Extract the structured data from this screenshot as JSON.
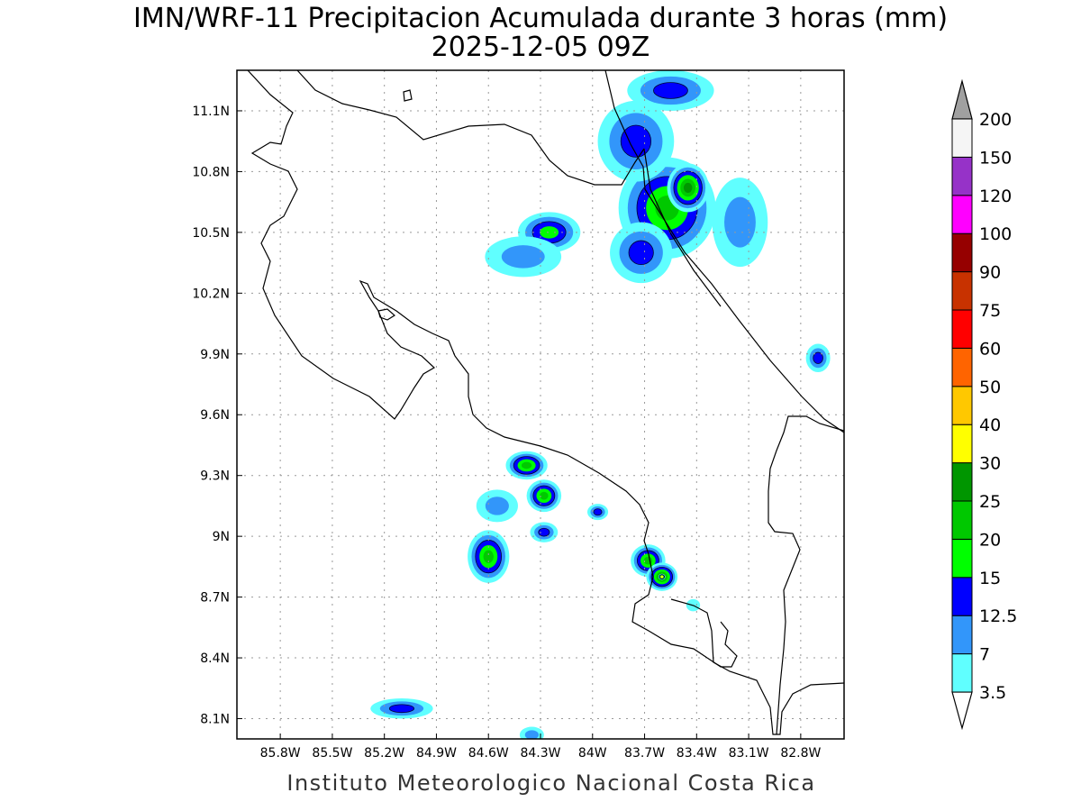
{
  "title": {
    "line1": "IMN/WRF-11 Precipitacion Acumulada durante 3 horas (mm)",
    "line2": "2025-12-05 09Z"
  },
  "credit": "Instituto Meteorologico Nacional Costa Rica",
  "map": {
    "lon_range": [
      -86.05,
      -82.55
    ],
    "lat_range": [
      8.0,
      11.3
    ],
    "lon_ticks": [
      -85.8,
      -85.5,
      -85.2,
      -84.9,
      -84.6,
      -84.3,
      -84.0,
      -83.7,
      -83.4,
      -83.1,
      -82.8
    ],
    "lon_labels": [
      "85.8W",
      "85.5W",
      "85.2W",
      "84.9W",
      "84.6W",
      "84.3W",
      "84W",
      "83.7W",
      "83.4W",
      "83.1W",
      "82.8W"
    ],
    "lat_ticks": [
      8.1,
      8.4,
      8.7,
      9.0,
      9.3,
      9.6,
      9.9,
      10.2,
      10.5,
      10.8,
      11.1
    ],
    "lat_labels": [
      "8.1N",
      "8.4N",
      "8.7N",
      "9N",
      "9.3N",
      "9.6N",
      "9.9N",
      "10.2N",
      "10.5N",
      "10.8N",
      "11.1N"
    ],
    "grid": true
  },
  "colorbar": {
    "colors": [
      "#60ffff",
      "#3296fa",
      "#0000ff",
      "#00ff00",
      "#00c800",
      "#009600",
      "#ffff00",
      "#ffc800",
      "#ff6400",
      "#ff0000",
      "#c83200",
      "#960000",
      "#ff00ff",
      "#9632c8",
      "#f5f5f5"
    ],
    "labels": [
      "3.5",
      "7",
      "12.5",
      "15",
      "20",
      "25",
      "30",
      "40",
      "50",
      "60",
      "75",
      "90",
      "100",
      "120",
      "150",
      "200"
    ],
    "under_color": "#ffffff",
    "over_color": "#a0a0a0"
  },
  "precip_cells": [
    {
      "lon": -83.57,
      "lat": 10.62,
      "rx": 0.28,
      "ry": 0.25,
      "level": 4
    },
    {
      "lon": -83.45,
      "lat": 10.72,
      "rx": 0.12,
      "ry": 0.12,
      "level": 5
    },
    {
      "lon": -83.75,
      "lat": 10.95,
      "rx": 0.22,
      "ry": 0.2,
      "level": 2
    },
    {
      "lon": -83.55,
      "lat": 11.2,
      "rx": 0.25,
      "ry": 0.1,
      "level": 2
    },
    {
      "lon": -83.72,
      "lat": 10.4,
      "rx": 0.18,
      "ry": 0.15,
      "level": 2
    },
    {
      "lon": -84.25,
      "lat": 10.5,
      "rx": 0.18,
      "ry": 0.1,
      "level": 3
    },
    {
      "lon": -84.4,
      "lat": 10.38,
      "rx": 0.22,
      "ry": 0.1,
      "level": 1
    },
    {
      "lon": -83.15,
      "lat": 10.55,
      "rx": 0.16,
      "ry": 0.22,
      "level": 1
    },
    {
      "lon": -82.7,
      "lat": 9.88,
      "rx": 0.07,
      "ry": 0.07,
      "level": 2
    },
    {
      "lon": -84.38,
      "lat": 9.35,
      "rx": 0.12,
      "ry": 0.07,
      "level": 4
    },
    {
      "lon": -84.28,
      "lat": 9.2,
      "rx": 0.1,
      "ry": 0.08,
      "level": 4
    },
    {
      "lon": -84.55,
      "lat": 9.15,
      "rx": 0.12,
      "ry": 0.08,
      "level": 1
    },
    {
      "lon": -84.6,
      "lat": 8.9,
      "rx": 0.12,
      "ry": 0.13,
      "level": 4
    },
    {
      "lon": -84.28,
      "lat": 9.02,
      "rx": 0.08,
      "ry": 0.05,
      "level": 2
    },
    {
      "lon": -83.97,
      "lat": 9.12,
      "rx": 0.06,
      "ry": 0.04,
      "level": 2
    },
    {
      "lon": -83.68,
      "lat": 8.88,
      "rx": 0.1,
      "ry": 0.08,
      "level": 4
    },
    {
      "lon": -83.6,
      "lat": 8.8,
      "rx": 0.09,
      "ry": 0.07,
      "level": 5
    },
    {
      "lon": -83.6,
      "lat": 8.8,
      "rx": 0.02,
      "ry": 0.015,
      "level": 6
    },
    {
      "lon": -85.1,
      "lat": 8.15,
      "rx": 0.18,
      "ry": 0.05,
      "level": 2
    },
    {
      "lon": -84.35,
      "lat": 8.02,
      "rx": 0.07,
      "ry": 0.04,
      "level": 1
    },
    {
      "lon": -83.42,
      "lat": 8.66,
      "rx": 0.04,
      "ry": 0.03,
      "level": 0
    }
  ]
}
